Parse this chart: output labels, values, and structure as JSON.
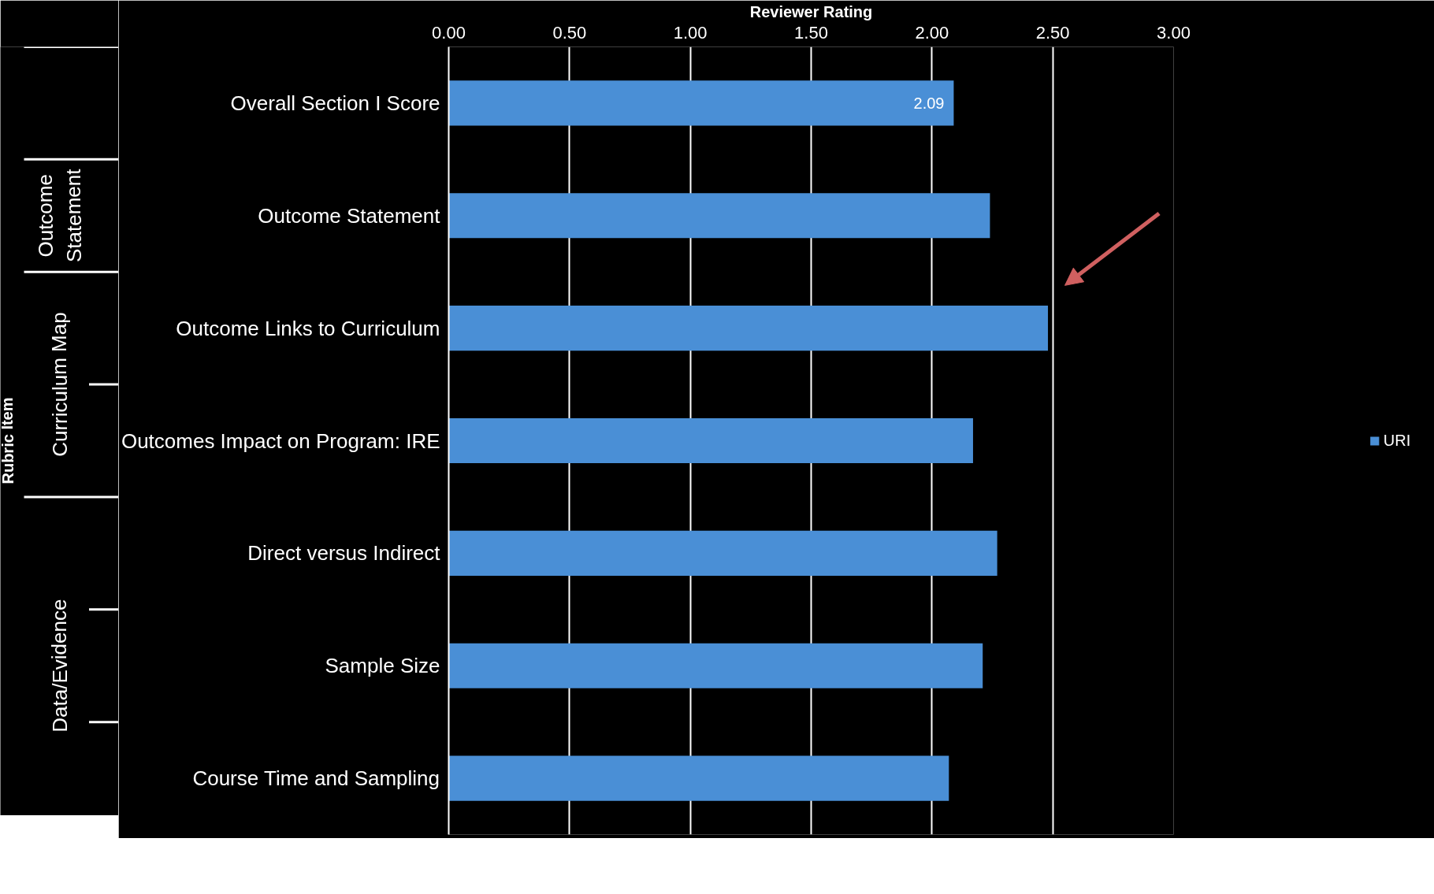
{
  "chart_data": {
    "type": "bar",
    "orientation": "horizontal",
    "xlabel": "Reviewer Rating",
    "categories": [
      "Overall Section I Score",
      "Outcome Statement",
      "Outcome Links to Curriculum",
      "Outcomes Impact on Program: IRE",
      "Direct versus Indirect",
      "Sample Size",
      "Course Time and Sampling"
    ],
    "series": [
      {
        "name": "URI",
        "color": "#4a8fd6",
        "values": [
          2.09,
          2.24,
          2.48,
          2.17,
          2.27,
          2.21,
          2.07
        ],
        "value_labels": [
          "2.09",
          null,
          null,
          null,
          null,
          null,
          null
        ]
      }
    ],
    "xlim": [
      0,
      3
    ],
    "xticks": [
      {
        "value": 0,
        "label": "0.00"
      },
      {
        "value": 0.5,
        "label": "0.50"
      },
      {
        "value": 1,
        "label": "1.00"
      },
      {
        "value": 1.5,
        "label": "1.50"
      },
      {
        "value": 2,
        "label": "2.00"
      },
      {
        "value": 2.5,
        "label": "2.50"
      },
      {
        "value": 3,
        "label": "3.00"
      }
    ],
    "grid": "x",
    "legend": "right",
    "annotations": [
      "Outcome Statement",
      "Curriculum Map",
      "Data/Evidence",
      "Rubric Item"
    ]
  }
}
